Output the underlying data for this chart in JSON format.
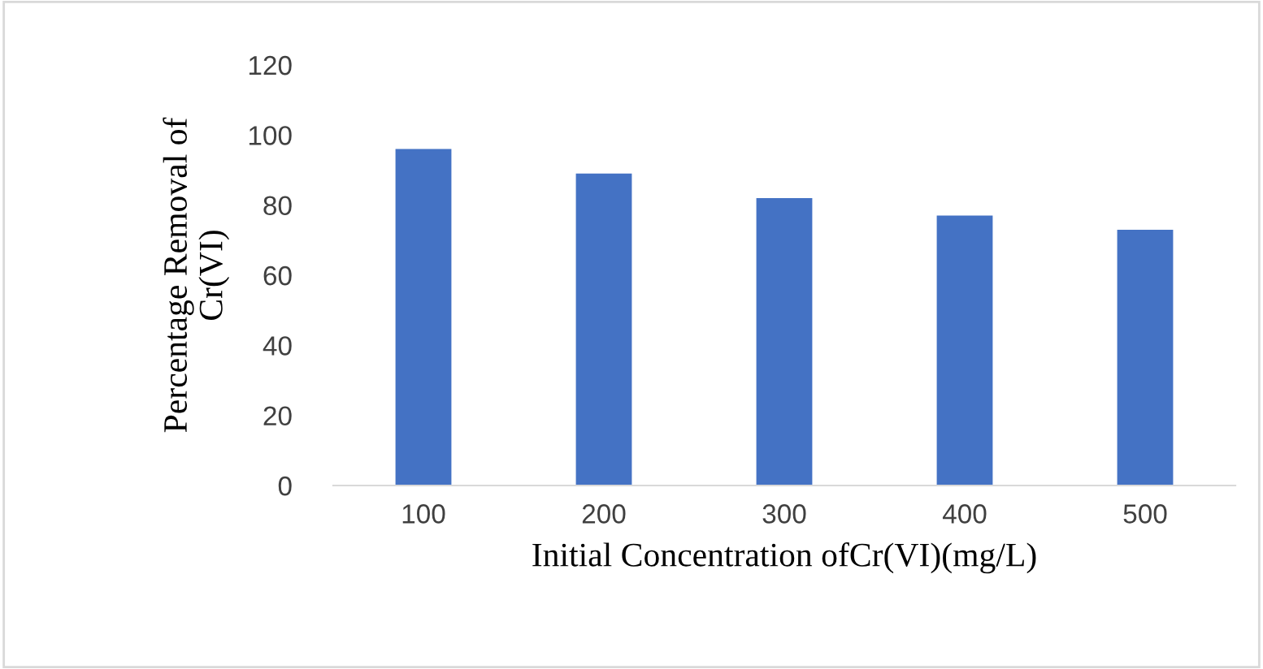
{
  "chart_data": {
    "type": "bar",
    "xlabel": "Initial Concentration ofCr(VI)(mg/L)",
    "ylabel": "Percentage Removal of\nCr(VI)",
    "categories": [
      "100",
      "200",
      "300",
      "400",
      "500"
    ],
    "values": [
      96,
      89,
      82,
      77,
      73
    ],
    "color": "#4472c4",
    "ylim": [
      0,
      120
    ],
    "yticks": [
      0,
      20,
      40,
      60,
      80,
      100,
      120
    ],
    "grid": false,
    "legend": false
  }
}
